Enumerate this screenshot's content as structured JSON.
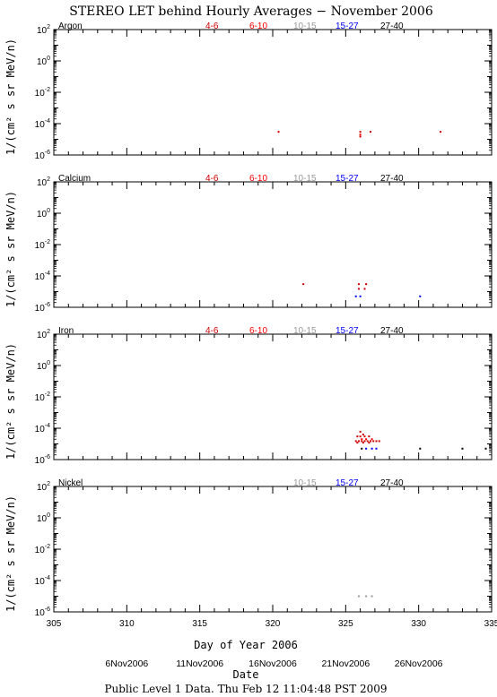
{
  "title": "STEREO LET behind Hourly Averages − November 2006",
  "ylabel": "1/(cm² s sr MeV/n)",
  "xlabel": "Day of Year 2006",
  "date_label": "Date",
  "footer": "Public Level 1 Data. Thu Feb 12 11:04:48 PST 2009",
  "dates": [
    "6Nov2006",
    "11Nov2006",
    "16Nov2006",
    "21Nov2006",
    "26Nov2006"
  ],
  "colors": {
    "4-6": "#cc0000",
    "6-10": "#ff0000",
    "10-15": "#999999",
    "15-27": "#0000ff",
    "27-40": "#000000"
  },
  "chart_data": [
    {
      "type": "scatter",
      "element": "Argon",
      "legend": [
        "4-6",
        "6-10",
        "10-15",
        "15-27",
        "27-40"
      ],
      "xlim": [
        305,
        335
      ],
      "ylim_log10": [
        -6,
        2
      ],
      "yscale": "log",
      "series": [
        {
          "name": "4-6",
          "points": [
            [
              320.4,
              3e-05
            ],
            [
              326.0,
              3e-05
            ],
            [
              326.0,
              1.5e-05
            ],
            [
              326.7,
              3e-05
            ],
            [
              331.5,
              3e-05
            ]
          ]
        },
        {
          "name": "6-10",
          "points": [
            [
              326.0,
              2e-05
            ]
          ]
        }
      ]
    },
    {
      "type": "scatter",
      "element": "Calcium",
      "legend": [
        "4-6",
        "6-10",
        "10-15",
        "15-27",
        "27-40"
      ],
      "xlim": [
        305,
        335
      ],
      "ylim_log10": [
        -6,
        2
      ],
      "yscale": "log",
      "series": [
        {
          "name": "4-6",
          "points": [
            [
              322.1,
              3e-05
            ],
            [
              325.9,
              3e-05
            ],
            [
              326.4,
              3e-05
            ],
            [
              325.9,
              1.5e-05
            ],
            [
              326.3,
              1.5e-05
            ]
          ]
        },
        {
          "name": "15-27",
          "points": [
            [
              325.7,
              5e-06
            ],
            [
              326.0,
              5e-06
            ],
            [
              330.1,
              5e-06
            ]
          ]
        }
      ]
    },
    {
      "type": "scatter",
      "element": "Iron",
      "legend": [
        "4-6",
        "6-10",
        "10-15",
        "15-27",
        "27-40"
      ],
      "xlim": [
        305,
        335
      ],
      "ylim_log10": [
        -6,
        2
      ],
      "yscale": "log",
      "series": [
        {
          "name": "4-6",
          "points": [
            [
              326.0,
              6e-05
            ],
            [
              326.2,
              4e-05
            ],
            [
              325.8,
              3e-05
            ],
            [
              326.0,
              3e-05
            ],
            [
              326.3,
              3e-05
            ],
            [
              326.6,
              3e-05
            ],
            [
              325.7,
              1.5e-05
            ],
            [
              325.9,
              1.5e-05
            ],
            [
              326.1,
              1.5e-05
            ],
            [
              326.3,
              1.5e-05
            ],
            [
              326.5,
              1.5e-05
            ],
            [
              326.7,
              1.5e-05
            ],
            [
              326.9,
              1.5e-05
            ],
            [
              327.1,
              1.5e-05
            ],
            [
              327.3,
              1.5e-05
            ],
            [
              325.8,
              1.2e-05
            ],
            [
              326.2,
              1.2e-05
            ],
            [
              326.6,
              1.2e-05
            ]
          ]
        },
        {
          "name": "6-10",
          "points": [
            [
              326.1,
              2e-05
            ],
            [
              326.4,
              2e-05
            ],
            [
              326.8,
              2e-05
            ]
          ]
        },
        {
          "name": "15-27",
          "points": [
            [
              326.4,
              5e-06
            ],
            [
              326.8,
              5e-06
            ],
            [
              327.1,
              5e-06
            ]
          ]
        },
        {
          "name": "27-40",
          "points": [
            [
              326.1,
              5e-06
            ],
            [
              330.1,
              5e-06
            ],
            [
              333.0,
              5e-06
            ],
            [
              334.6,
              5e-06
            ]
          ]
        }
      ]
    },
    {
      "type": "scatter",
      "element": "Nickel",
      "legend": [
        "10-15",
        "15-27",
        "27-40"
      ],
      "xlim": [
        305,
        335
      ],
      "ylim_log10": [
        -6,
        2
      ],
      "yscale": "log",
      "series": [
        {
          "name": "10-15",
          "points": [
            [
              325.9,
              1e-05
            ],
            [
              326.4,
              1e-05
            ],
            [
              326.8,
              1e-05
            ]
          ]
        }
      ]
    }
  ]
}
